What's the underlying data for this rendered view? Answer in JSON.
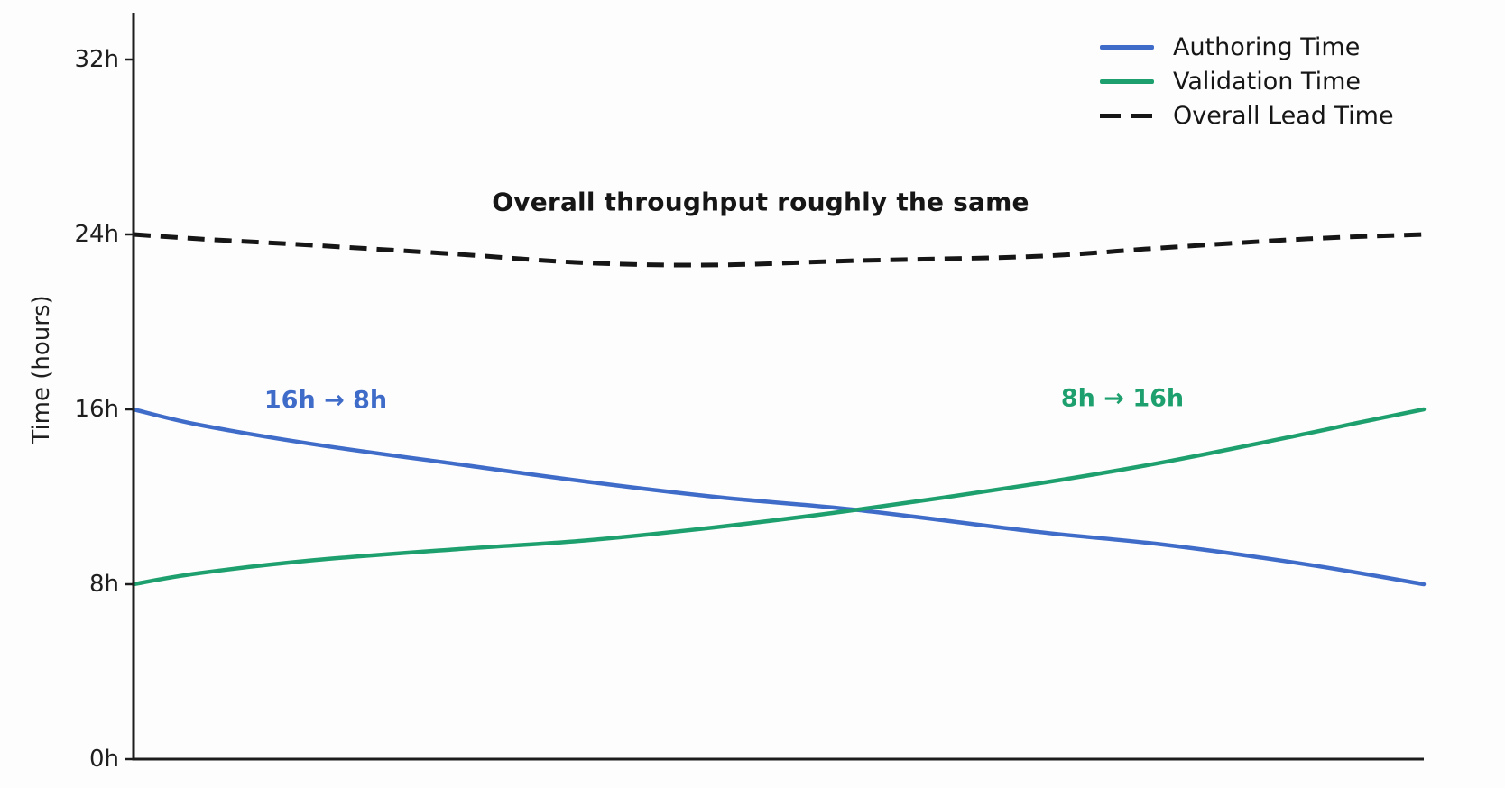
{
  "chart_data": {
    "type": "line",
    "title": "",
    "xlabel": "",
    "ylabel": "Time (hours)",
    "ylim": [
      0,
      34
    ],
    "xlim": [
      0,
      1
    ],
    "grid": false,
    "xticks": [],
    "yticks": [
      {
        "value": 0,
        "label": "0h"
      },
      {
        "value": 8,
        "label": "8h"
      },
      {
        "value": 16,
        "label": "16h"
      },
      {
        "value": 24,
        "label": "24h"
      },
      {
        "value": 32,
        "label": "32h"
      }
    ],
    "legend_position": "top-right",
    "series": [
      {
        "name": "Authoring Time",
        "color": "#3F6BC9",
        "style": "solid",
        "points": [
          [
            0,
            16
          ],
          [
            0.05,
            15.3
          ],
          [
            0.14,
            14.4
          ],
          [
            0.25,
            13.5
          ],
          [
            0.35,
            12.7
          ],
          [
            0.45,
            12.0
          ],
          [
            0.56,
            11.4
          ],
          [
            0.7,
            10.4
          ],
          [
            0.8,
            9.8
          ],
          [
            0.91,
            8.9
          ],
          [
            1,
            8
          ]
        ]
      },
      {
        "name": "Validation Time",
        "color": "#1EA06E",
        "style": "solid",
        "points": [
          [
            0,
            8
          ],
          [
            0.05,
            8.5
          ],
          [
            0.14,
            9.1
          ],
          [
            0.25,
            9.6
          ],
          [
            0.35,
            10.0
          ],
          [
            0.45,
            10.6
          ],
          [
            0.56,
            11.4
          ],
          [
            0.7,
            12.6
          ],
          [
            0.8,
            13.6
          ],
          [
            0.91,
            14.9
          ],
          [
            0.95,
            15.4
          ],
          [
            1,
            16
          ]
        ]
      },
      {
        "name": "Overall Lead Time",
        "color": "#161616",
        "style": "dashed",
        "points": [
          [
            0,
            24
          ],
          [
            0.05,
            23.8
          ],
          [
            0.14,
            23.5
          ],
          [
            0.25,
            23.1
          ],
          [
            0.35,
            22.7
          ],
          [
            0.45,
            22.6
          ],
          [
            0.56,
            22.8
          ],
          [
            0.7,
            23.0
          ],
          [
            0.8,
            23.4
          ],
          [
            0.91,
            23.8
          ],
          [
            1,
            24
          ]
        ]
      }
    ],
    "annotations": [
      {
        "text": "Overall throughput roughly the same",
        "color": "#161616"
      },
      {
        "text": "16h → 8h",
        "color": "#3F6BC9"
      },
      {
        "text": "8h → 16h",
        "color": "#1EA06E"
      }
    ]
  }
}
